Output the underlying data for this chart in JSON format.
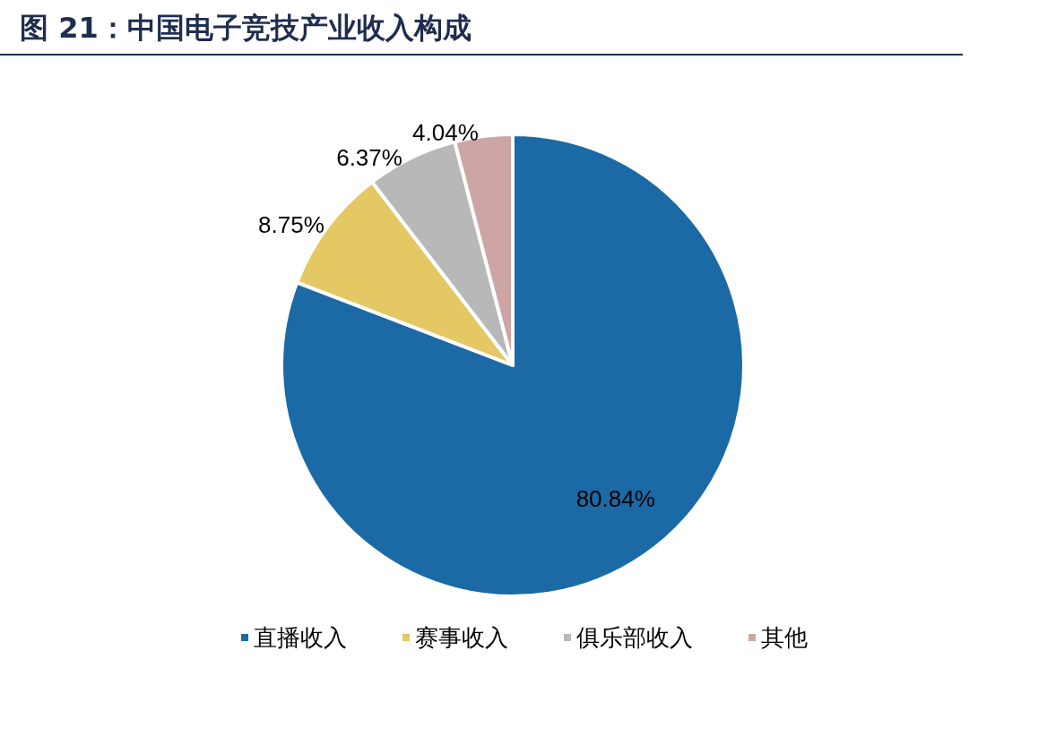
{
  "chart_data": {
    "type": "pie",
    "title": "图 21：中国电子竞技产业收入构成",
    "categories": [
      "直播收入",
      "赛事收入",
      "俱乐部收入",
      "其他"
    ],
    "values": [
      80.84,
      8.75,
      6.37,
      4.04
    ],
    "value_labels": [
      "80.84%",
      "8.75%",
      "6.37%",
      "4.04%"
    ],
    "colors": [
      "#1b6aa5",
      "#e3c864",
      "#b8b8b8",
      "#cda5a5"
    ],
    "legend": "bottom"
  }
}
